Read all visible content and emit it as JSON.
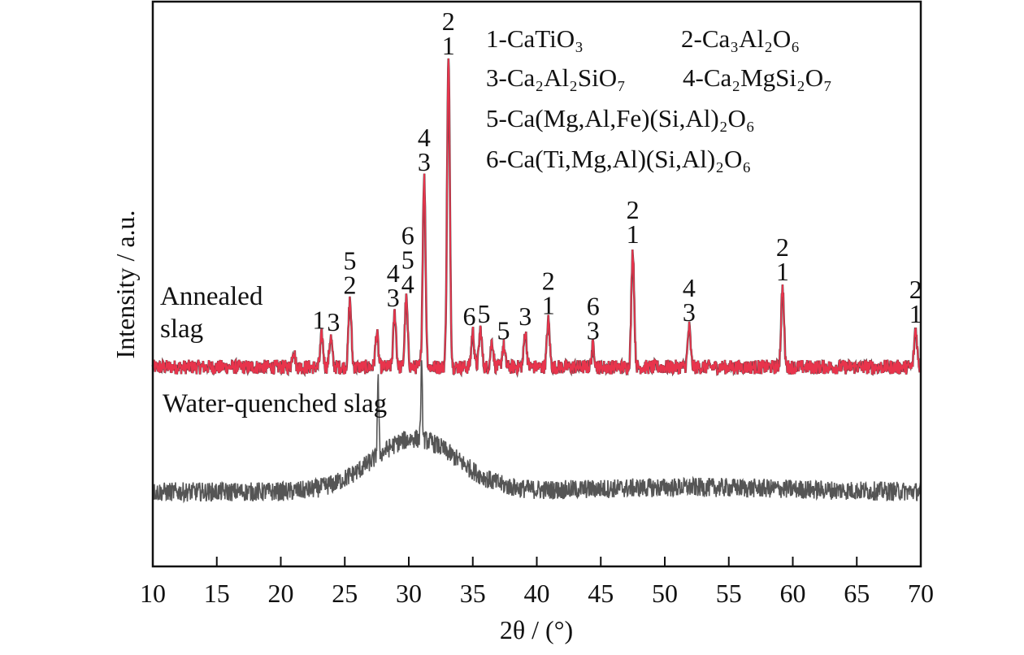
{
  "chart_data": {
    "type": "line",
    "xlabel": "2θ / (°)",
    "ylabel": "Intensity / a.u.",
    "xlim": [
      10,
      70
    ],
    "ylim": [
      0,
      100
    ],
    "xticks": [
      10,
      15,
      20,
      25,
      30,
      35,
      40,
      45,
      50,
      55,
      60,
      65,
      70
    ],
    "grid": false,
    "legend": {
      "placement": "top-right",
      "entries": [
        "1-CaTiO₃",
        "2-Ca₃Al₂O₆",
        "3-Ca₂Al₂SiO₇",
        "4-Ca₂MgSi₂O₇",
        "5-Ca(Mg,Al,Fe)(Si,Al)₂O₆",
        "6-Ca(Ti,Mg,Al)(Si,Al)₂O₆"
      ]
    },
    "series": [
      {
        "name": "Annealed slag",
        "name_lines": [
          "Annealed",
          "slag"
        ],
        "color": "#e8344c",
        "baseline": 35.3,
        "peaks": [
          {
            "x": 21.0,
            "y": 38.4,
            "labels": []
          },
          {
            "x": 23.2,
            "y": 40.9,
            "labels": [
              "1"
            ]
          },
          {
            "x": 23.9,
            "y": 40.6,
            "labels": [
              "3"
            ]
          },
          {
            "x": 25.4,
            "y": 47.1,
            "labels": [
              "2",
              "5"
            ]
          },
          {
            "x": 27.5,
            "y": 41.3,
            "labels": []
          },
          {
            "x": 28.9,
            "y": 44.9,
            "labels": [
              "3",
              "4"
            ]
          },
          {
            "x": 29.8,
            "y": 47.3,
            "labels": [
              "4",
              "5",
              "6"
            ]
          },
          {
            "x": 31.2,
            "y": 68.9,
            "labels": [
              "3",
              "4"
            ]
          },
          {
            "x": 33.1,
            "y": 89.5,
            "labels": [
              "1",
              "2"
            ]
          },
          {
            "x": 35.0,
            "y": 41.6,
            "labels": [
              "6"
            ]
          },
          {
            "x": 35.6,
            "y": 42.0,
            "labels": [
              "5"
            ]
          },
          {
            "x": 36.5,
            "y": 39.9,
            "labels": []
          },
          {
            "x": 37.4,
            "y": 39.1,
            "labels": [
              "5"
            ]
          },
          {
            "x": 39.1,
            "y": 41.6,
            "labels": [
              "3"
            ]
          },
          {
            "x": 40.9,
            "y": 43.5,
            "labels": [
              "1",
              "2"
            ]
          },
          {
            "x": 44.4,
            "y": 39.1,
            "labels": [
              "3",
              "6"
            ]
          },
          {
            "x": 47.5,
            "y": 56.1,
            "labels": [
              "1",
              "2"
            ]
          },
          {
            "x": 51.9,
            "y": 42.3,
            "labels": [
              "3",
              "4"
            ]
          },
          {
            "x": 59.2,
            "y": 49.5,
            "labels": [
              "1",
              "2"
            ]
          },
          {
            "x": 69.6,
            "y": 42.0,
            "labels": [
              "1",
              "2"
            ]
          }
        ]
      },
      {
        "name": "Water-quenched slag",
        "color": "#555555",
        "baseline": 13.2,
        "amorphous_hump": {
          "center": 30.5,
          "max": 22.6
        },
        "peaks": [
          {
            "x": 27.6,
            "y": 26.5
          },
          {
            "x": 31.0,
            "y": 25.9
          }
        ]
      }
    ]
  }
}
